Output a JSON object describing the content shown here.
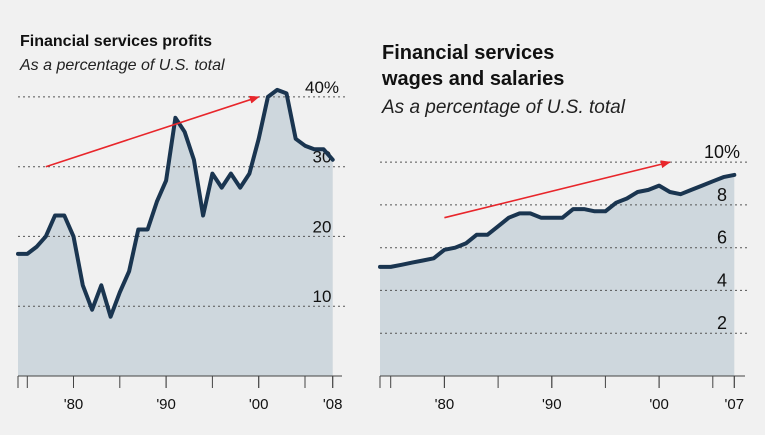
{
  "chart_data": [
    {
      "type": "area",
      "title": "Financial services profits",
      "subtitle": "As a percentage of U.S. total",
      "x": [
        1974,
        1975,
        1976,
        1977,
        1978,
        1979,
        1980,
        1981,
        1982,
        1983,
        1984,
        1985,
        1986,
        1987,
        1988,
        1989,
        1990,
        1991,
        1992,
        1993,
        1994,
        1995,
        1996,
        1997,
        1998,
        1999,
        2000,
        2001,
        2002,
        2003,
        2004,
        2005,
        2006,
        2007,
        2008
      ],
      "values": [
        17.5,
        17.5,
        18.5,
        20,
        23,
        23,
        20,
        13,
        9.5,
        13,
        8.5,
        12,
        15,
        21,
        21,
        25,
        28,
        37,
        35,
        31,
        23,
        29,
        27,
        29,
        27,
        29,
        34,
        40,
        41,
        40.5,
        34,
        33,
        32.5,
        32.5,
        31
      ],
      "xlim": [
        1974,
        2009
      ],
      "ylim": [
        0,
        45
      ],
      "x_ticks": [
        1980,
        1990,
        2000,
        2008
      ],
      "x_tick_labels": [
        "'80",
        "'90",
        "'00",
        "'08"
      ],
      "y_ticks": [
        10,
        20,
        30,
        40
      ],
      "y_tick_labels": [
        "10",
        "20",
        "30",
        "40%"
      ],
      "grid": "dotted horizontal",
      "colors": {
        "line": "#1a3550",
        "fill": "#ced7dd",
        "grid": "#555555",
        "arrow": "#e8262b"
      },
      "trend_arrow": {
        "from": [
          1977,
          30
        ],
        "to": [
          2000,
          40
        ]
      }
    },
    {
      "type": "area",
      "title": "Financial services wages and salaries",
      "title_lines": [
        "Financial services",
        "wages and salaries"
      ],
      "subtitle": "As a percentage of U.S. total",
      "x": [
        1974,
        1975,
        1976,
        1977,
        1978,
        1979,
        1980,
        1981,
        1982,
        1983,
        1984,
        1985,
        1986,
        1987,
        1988,
        1989,
        1990,
        1991,
        1992,
        1993,
        1994,
        1995,
        1996,
        1997,
        1998,
        1999,
        2000,
        2001,
        2002,
        2003,
        2004,
        2005,
        2006,
        2007
      ],
      "values": [
        5.1,
        5.1,
        5.2,
        5.3,
        5.4,
        5.5,
        5.9,
        6.0,
        6.2,
        6.6,
        6.6,
        7.0,
        7.4,
        7.6,
        7.6,
        7.4,
        7.4,
        7.4,
        7.8,
        7.8,
        7.7,
        7.7,
        8.1,
        8.3,
        8.6,
        8.7,
        8.9,
        8.6,
        8.5,
        8.7,
        8.9,
        9.1,
        9.3,
        9.4
      ],
      "xlim": [
        1974,
        2008
      ],
      "ylim": [
        0,
        11.5
      ],
      "x_ticks": [
        1980,
        1990,
        2000,
        2007
      ],
      "x_tick_labels": [
        "'80",
        "'90",
        "'00",
        "'07"
      ],
      "y_ticks": [
        2,
        4,
        6,
        8,
        10
      ],
      "y_tick_labels": [
        "2",
        "4",
        "6",
        "8",
        "10%"
      ],
      "grid": "dotted horizontal",
      "colors": {
        "line": "#1a3550",
        "fill": "#ced7dd",
        "grid": "#555555",
        "arrow": "#e8262b"
      },
      "trend_arrow": {
        "from": [
          1980,
          7.4
        ],
        "to": [
          2001,
          10
        ]
      }
    }
  ]
}
